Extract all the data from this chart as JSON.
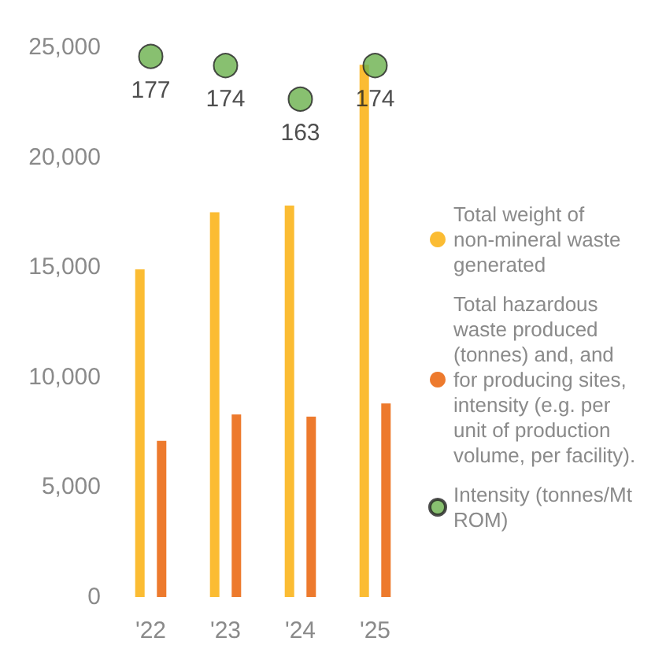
{
  "chart_data": {
    "type": "bar",
    "categories": [
      "'22",
      "'23",
      "'24",
      "'25"
    ],
    "series": [
      {
        "name": "Total weight of non-mineral waste generated",
        "color": "#fbbc33",
        "values": [
          14900,
          17500,
          17800,
          24200
        ]
      },
      {
        "name": "Total hazardous waste produced (tonnes) and, and for producing sites, intensity (e.g. per unit of production volume, per facility).",
        "color": "#ed7a2d",
        "values": [
          7100,
          8300,
          8200,
          8800
        ]
      },
      {
        "name": "Intensity (tonnes/Mt ROM)",
        "type": "scatter",
        "axis": "y2",
        "color": "#6ab04c",
        "values": [
          177,
          174,
          163,
          174
        ],
        "value_labels": [
          "177",
          "174",
          "163",
          "174"
        ]
      }
    ],
    "ylim": [
      0,
      25000
    ],
    "yticks": [
      0,
      {
        "value": 5000,
        "label": "5,000"
      },
      {
        "value": 10000,
        "label": "10,000"
      },
      {
        "value": 15000,
        "label": "15,000"
      },
      {
        "value": 20000,
        "label": "20,000"
      },
      {
        "value": 25000,
        "label": "25,000"
      }
    ],
    "legend": "right",
    "marker": "circle",
    "grid": false
  }
}
